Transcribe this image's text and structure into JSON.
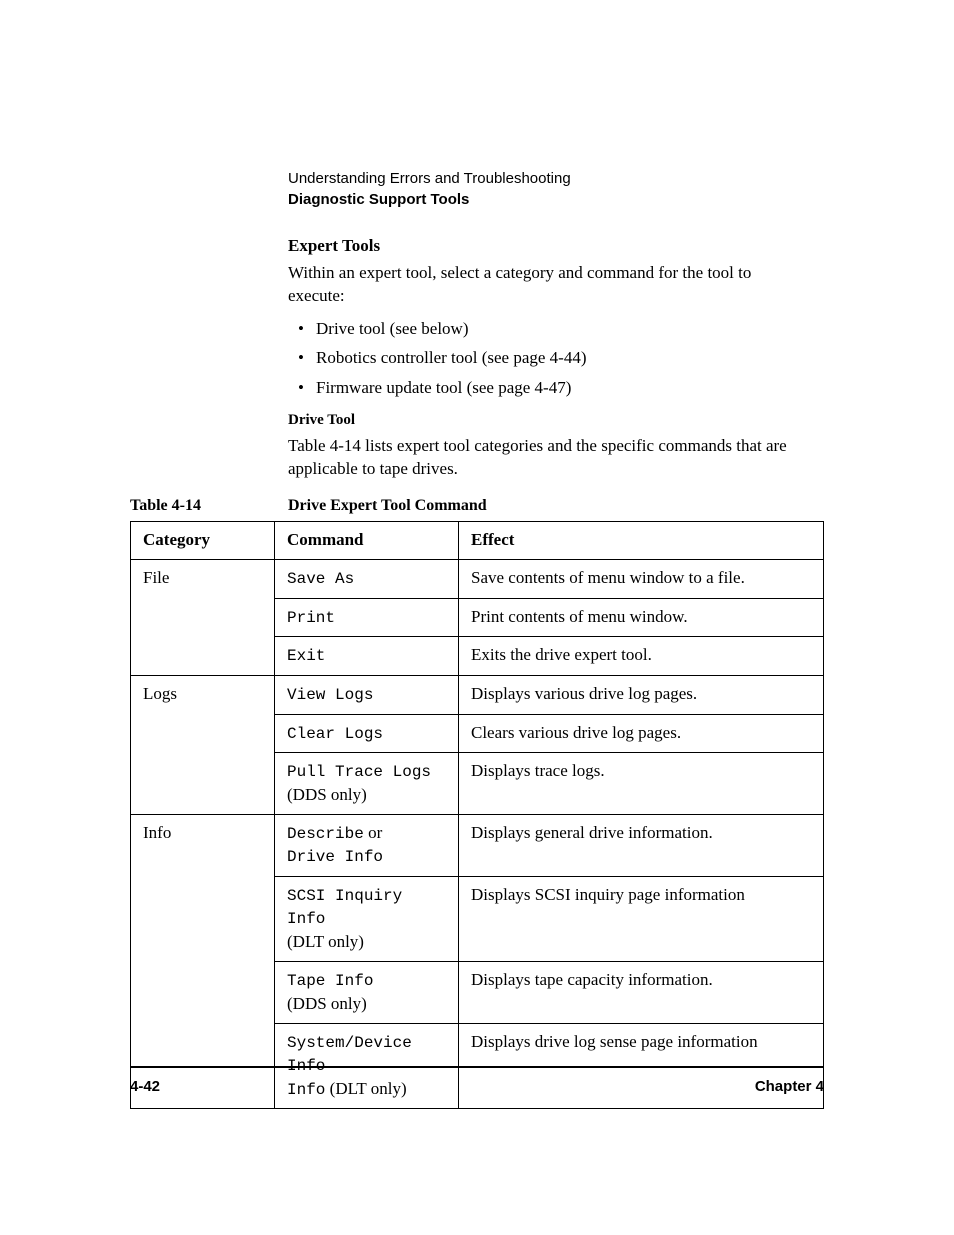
{
  "header": {
    "chapter_desc": "Understanding Errors and Troubleshooting",
    "section_desc": "Diagnostic Support Tools"
  },
  "sections": {
    "expert_tools": {
      "title": "Expert Tools",
      "intro": "Within an expert tool, select a category and command for the tool to execute:",
      "bullets": [
        "Drive tool (see below)",
        "Robotics controller tool (see page 4-44)",
        "Firmware update tool (see page 4-47)"
      ]
    },
    "drive_tool": {
      "title": "Drive Tool",
      "intro": "Table 4-14 lists expert tool categories and the specific commands that are applicable to tape drives."
    }
  },
  "table": {
    "number": "Table 4-14",
    "caption": "Drive Expert Tool Command",
    "headers": {
      "category": "Category",
      "command": "Command",
      "effect": "Effect"
    },
    "groups": [
      {
        "category": "File",
        "rows": [
          {
            "command_mono": "Save As",
            "command_roman": "",
            "effect": "Save contents of menu window to a file."
          },
          {
            "command_mono": "Print",
            "command_roman": "",
            "effect": "Print contents of menu window."
          },
          {
            "command_mono": "Exit",
            "command_roman": "",
            "effect": "Exits the drive expert tool."
          }
        ]
      },
      {
        "category": "Logs",
        "rows": [
          {
            "command_mono": "View Logs",
            "command_roman": "",
            "effect": "Displays various drive log pages."
          },
          {
            "command_mono": "Clear Logs",
            "command_roman": "",
            "effect": "Clears various drive log pages."
          },
          {
            "command_mono": "Pull Trace Logs",
            "command_roman": "(DDS only)",
            "effect": "Displays trace logs."
          }
        ]
      },
      {
        "category": "Info",
        "rows": [
          {
            "command_mono": "Describe",
            "command_roman_inline": " or",
            "command_mono2": "Drive Info",
            "effect": "Displays general drive information."
          },
          {
            "command_mono": "SCSI Inquiry Info",
            "command_roman": "(DLT only)",
            "effect": "Displays SCSI inquiry page information"
          },
          {
            "command_mono": "Tape Info",
            "command_roman": "(DDS only)",
            "effect": "Displays tape capacity information."
          },
          {
            "command_mono": "System/Device Info",
            "command_roman_inline": " (DLT only)",
            "effect": "Displays drive log sense page information"
          }
        ]
      }
    ]
  },
  "footer": {
    "page_number": "4-42",
    "chapter": "Chapter 4"
  }
}
